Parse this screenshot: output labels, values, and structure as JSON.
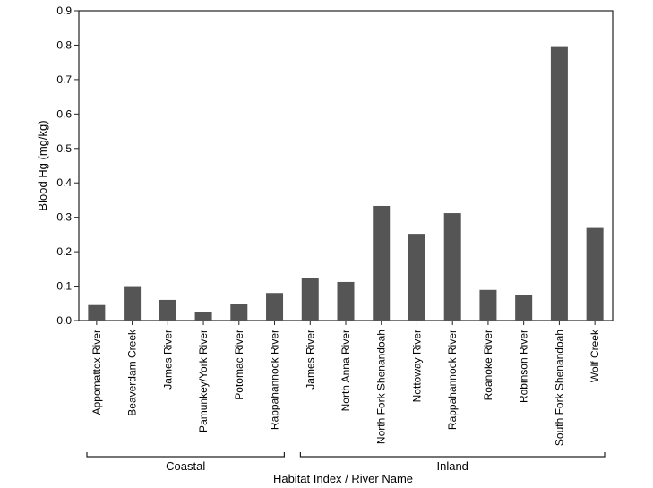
{
  "chart_data": {
    "type": "bar",
    "title": "",
    "xlabel": "Habitat Index / River Name",
    "ylabel": "Blood Hg (mg/kg)",
    "ylim": [
      0,
      0.9
    ],
    "yticks": [
      "0.0",
      "0.1",
      "0.2",
      "0.3",
      "0.4",
      "0.5",
      "0.6",
      "0.7",
      "0.8",
      "0.9"
    ],
    "categories": [
      "Appomattox River",
      "Beaverdam Creek",
      "James River",
      "Pamunkey/York River",
      "Potomac River",
      "Rappahannock River",
      "James River",
      "North Anna River",
      "North Fork Shenandoah",
      "Nottoway River",
      "Rappahannock River",
      "Roanoke River",
      "Robinson River",
      "South Fork Shenandoah",
      "Wolf Creek"
    ],
    "values": [
      0.045,
      0.1,
      0.06,
      0.025,
      0.048,
      0.08,
      0.123,
      0.112,
      0.333,
      0.252,
      0.312,
      0.089,
      0.074,
      0.797,
      0.269
    ],
    "groups": [
      {
        "name": "Coastal",
        "start": 0,
        "end": 5
      },
      {
        "name": "Inland",
        "start": 6,
        "end": 14
      }
    ],
    "bar_color": "#555555",
    "grid": false,
    "legend": "none"
  }
}
